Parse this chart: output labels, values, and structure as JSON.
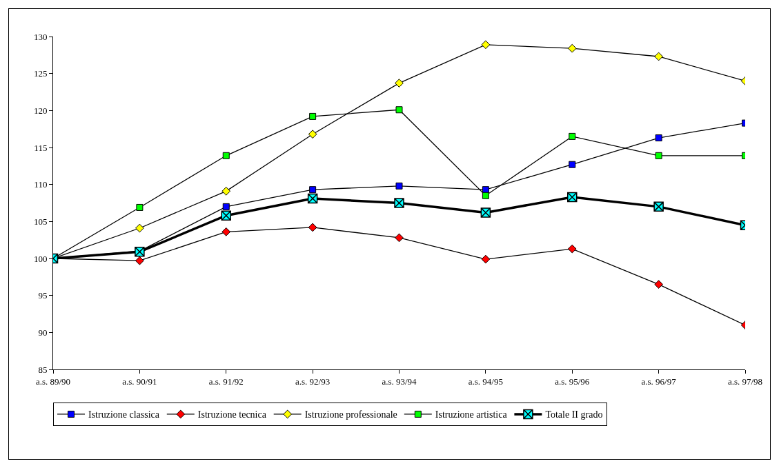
{
  "chart_data": {
    "type": "line",
    "categories": [
      "a.s. 89/90",
      "a.s. 90/91",
      "a.s. 91/92",
      "a.s. 92/93",
      "a.s. 93/94",
      "a.s. 94/95",
      "a.s. 95/96",
      "a.s. 96/97",
      "a.s. 97/98"
    ],
    "series": [
      {
        "name": "Istruzione classica",
        "color": "#0000ff",
        "marker": "square",
        "values": [
          100,
          101,
          107.0,
          109.3,
          109.8,
          109.3,
          112.7,
          116.3,
          118.3
        ]
      },
      {
        "name": "Istruzione tecnica",
        "color": "#ff0000",
        "marker": "diamond",
        "values": [
          100,
          99.7,
          103.6,
          104.2,
          102.8,
          99.9,
          101.3,
          96.5,
          91.0
        ]
      },
      {
        "name": "Istruzione professionale",
        "color": "#ffff00",
        "marker": "diamond",
        "values": [
          100,
          104.1,
          109.1,
          116.8,
          123.7,
          128.9,
          128.4,
          127.3,
          124.0
        ]
      },
      {
        "name": "Istruzione artistica",
        "color": "#00ff00",
        "marker": "square",
        "values": [
          100,
          106.9,
          113.9,
          119.2,
          120.1,
          108.5,
          116.5,
          113.9,
          113.9
        ]
      },
      {
        "name": "Totale II grado",
        "color": "#00ffff",
        "marker": "cross",
        "values": [
          100,
          100.9,
          105.8,
          108.1,
          107.5,
          106.2,
          108.3,
          107.0,
          104.5
        ]
      }
    ],
    "ylim": [
      85,
      130
    ],
    "yticks": [
      85,
      90,
      95,
      100,
      105,
      110,
      115,
      120,
      125,
      130
    ],
    "grid": false,
    "legend": "bottom",
    "line_style": "solid"
  }
}
